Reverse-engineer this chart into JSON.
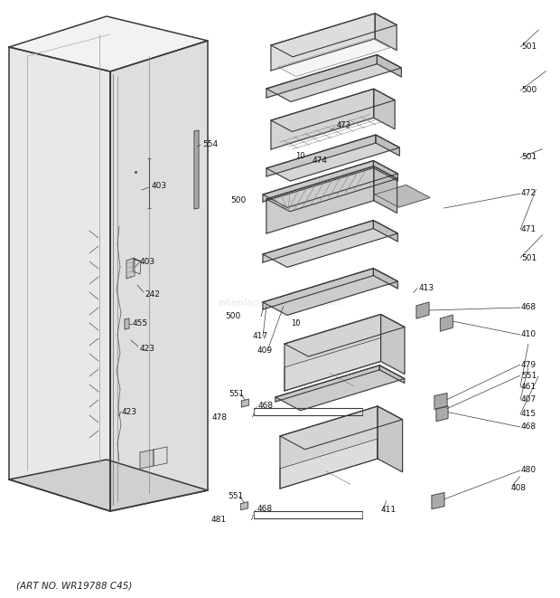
{
  "footer": "(ART NO. WR19788 C45)",
  "bg_color": "#ffffff",
  "watermark": "eReplacementParts.com"
}
